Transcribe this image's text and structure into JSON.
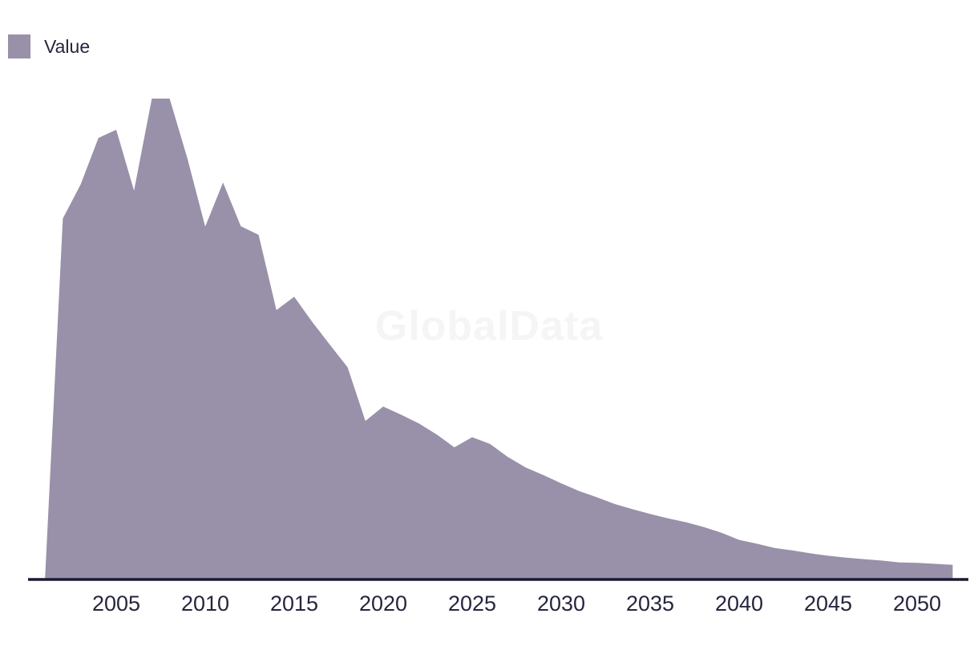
{
  "page": {
    "background": "#ffffff"
  },
  "legend": {
    "label": "Value"
  },
  "watermark": {
    "text": "GlobalData"
  },
  "colors": {
    "series_fill": "#9990a9",
    "axis_line": "#1a1a32",
    "tick_text": "#26263e",
    "legend_text": "#26263e",
    "watermark_text": "#f5f5f6",
    "background": "#ffffff"
  },
  "chart_data": {
    "type": "area",
    "title": "",
    "xlabel": "",
    "ylabel": "",
    "grid": false,
    "legend_position": "top-left",
    "y_axis_visible": false,
    "units": "relative value (no y-axis labels shown; peak 2007-2008 = 100)",
    "series_name": "Value",
    "x": [
      2001,
      2002,
      2003,
      2004,
      2005,
      2006,
      2007,
      2008,
      2009,
      2010,
      2011,
      2012,
      2013,
      2014,
      2015,
      2016,
      2017,
      2018,
      2019,
      2020,
      2021,
      2022,
      2023,
      2024,
      2025,
      2026,
      2027,
      2028,
      2029,
      2030,
      2031,
      2032,
      2033,
      2034,
      2035,
      2036,
      2037,
      2038,
      2039,
      2040,
      2041,
      2042,
      2043,
      2044,
      2045,
      2046,
      2047,
      2048,
      2049,
      2050,
      2051,
      2052
    ],
    "values": [
      0,
      75,
      82.1,
      91.8,
      93.5,
      80.8,
      100,
      100,
      87.5,
      73.3,
      82.5,
      73.4,
      71.6,
      55.9,
      58.7,
      53.5,
      48.7,
      44,
      32.8,
      35.8,
      34.1,
      32.3,
      30,
      27.3,
      29.4,
      28,
      25.3,
      23.1,
      21.5,
      19.8,
      18.2,
      16.9,
      15.5,
      14.4,
      13.4,
      12.5,
      11.7,
      10.7,
      9.5,
      8,
      7.2,
      6.3,
      5.8,
      5.2,
      4.7,
      4.3,
      4,
      3.7,
      3.3,
      3.2,
      3,
      2.8
    ],
    "x_ticks": [
      "2005",
      "2010",
      "2015",
      "2020",
      "2025",
      "2030",
      "2035",
      "2040",
      "2045",
      "2050"
    ],
    "xlim": [
      2001,
      2052
    ],
    "ylim": [
      0,
      100
    ]
  }
}
